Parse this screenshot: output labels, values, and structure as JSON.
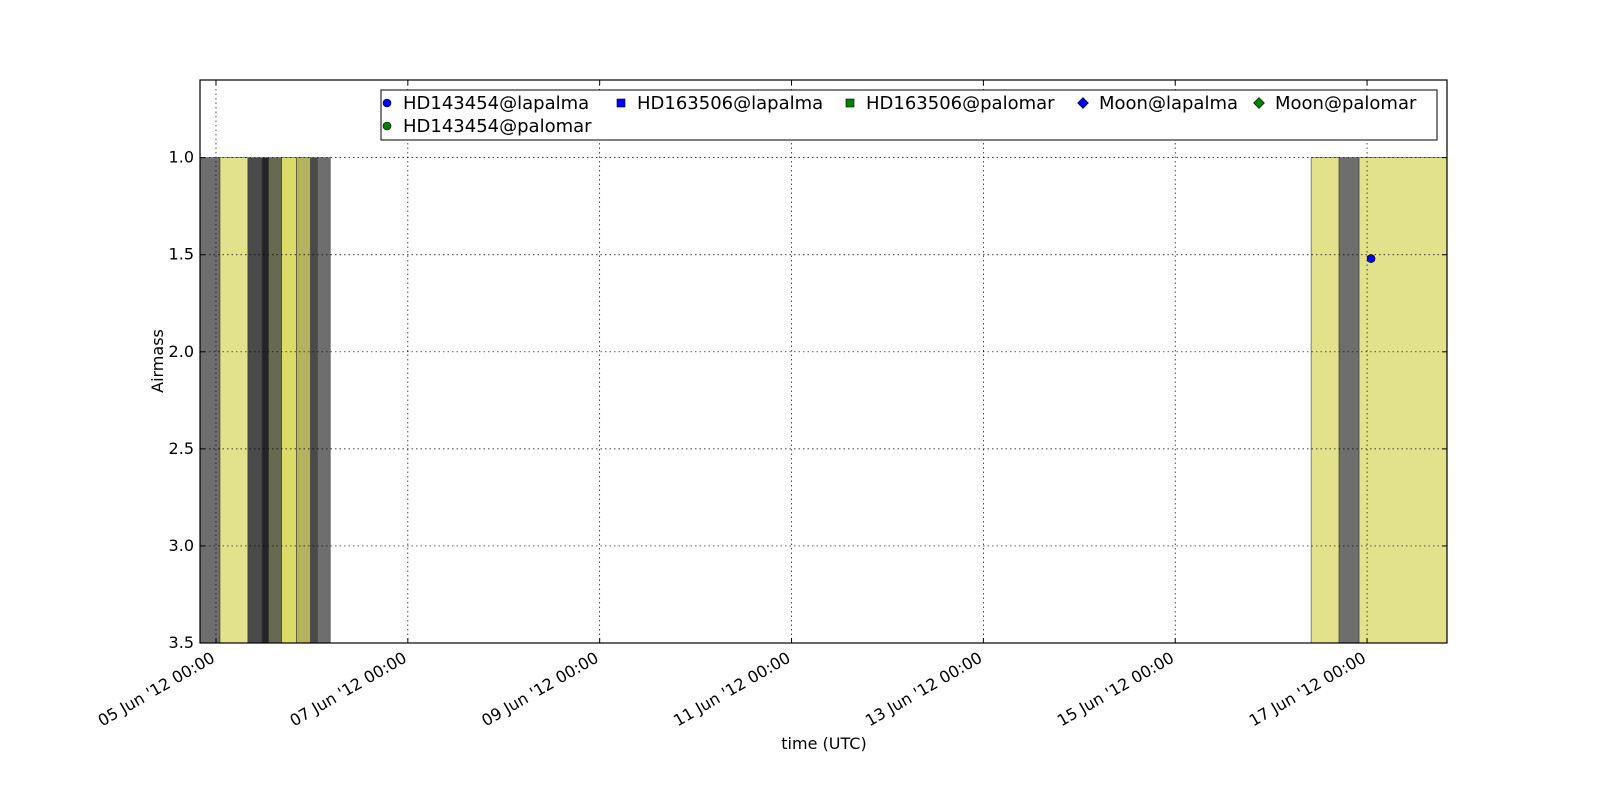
{
  "chart_data": {
    "type": "scatter",
    "xlabel": "time (UTC)",
    "ylabel": "Airmass",
    "x_ticks": [
      "05 Jun '12 00:00",
      "07 Jun '12 00:00",
      "09 Jun '12 00:00",
      "11 Jun '12 00:00",
      "13 Jun '12 00:00",
      "15 Jun '12 00:00",
      "17 Jun '12 00:00"
    ],
    "y_ticks": [
      "1.0",
      "1.5",
      "2.0",
      "2.5",
      "3.0",
      "3.5"
    ],
    "xlim": [
      "2012-06-04 20:00",
      "2012-06-17 20:00"
    ],
    "ylim": [
      3.5,
      0.6
    ],
    "y_inverted": true,
    "grid": true,
    "legend_position": "top",
    "series": [
      {
        "name": "HD143454@lapalma",
        "marker": "circle",
        "color": "#0000ff",
        "points": [
          {
            "x": "2012-06-17 01:00",
            "y": 1.52
          }
        ]
      },
      {
        "name": "HD163506@lapalma",
        "marker": "square",
        "color": "#0000ff",
        "points": []
      },
      {
        "name": "HD163506@palomar",
        "marker": "square",
        "color": "#008000",
        "points": []
      },
      {
        "name": "Moon@lapalma",
        "marker": "diamond",
        "color": "#0000ff",
        "points": []
      },
      {
        "name": "Moon@palomar",
        "marker": "diamond",
        "color": "#008000",
        "points": []
      },
      {
        "name": "HD143454@palomar",
        "marker": "circle",
        "color": "#008000",
        "points": []
      }
    ],
    "shaded_periods": [
      {
        "start": "2012-06-04 20:00",
        "end": "2012-06-05 01:00",
        "color": "#6e6e6e"
      },
      {
        "start": "2012-06-05 01:00",
        "end": "2012-06-05 08:00",
        "color": "#e3e28c"
      },
      {
        "start": "2012-06-05 08:00",
        "end": "2012-06-05 11:30",
        "color": "#4a4a4a"
      },
      {
        "start": "2012-06-05 11:30",
        "end": "2012-06-05 13:10",
        "color": "#242424"
      },
      {
        "start": "2012-06-05 13:10",
        "end": "2012-06-05 16:25",
        "color": "#696850"
      },
      {
        "start": "2012-06-05 16:25",
        "end": "2012-06-05 20:10",
        "color": "#dbdb68"
      },
      {
        "start": "2012-06-05 20:10",
        "end": "2012-06-05 23:40",
        "color": "#b4b25e"
      },
      {
        "start": "2012-06-05 23:40",
        "end": "2012-06-06 01:20",
        "color": "#4a4a4a"
      },
      {
        "start": "2012-06-06 01:20",
        "end": "2012-06-06 04:35",
        "color": "#6e6e6e"
      },
      {
        "start": "2012-06-16 10:00",
        "end": "2012-06-16 17:00",
        "color": "#e3e28c"
      },
      {
        "start": "2012-06-16 17:00",
        "end": "2012-06-16 22:00",
        "color": "#6e6e6e"
      },
      {
        "start": "2012-06-16 22:00",
        "end": "2012-06-17 20:00",
        "color": "#e3e28c"
      }
    ]
  }
}
